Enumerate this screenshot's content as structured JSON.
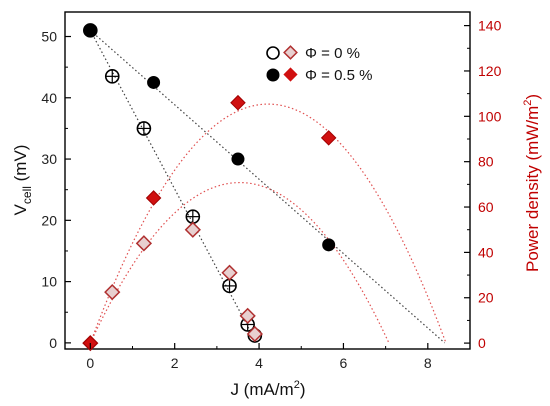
{
  "chart_data": {
    "type": "scatter",
    "xaxis": {
      "label_main": "J (mA/m",
      "label_sup": "2",
      "label_end": ")",
      "range": [
        -0.6,
        9.0
      ],
      "ticks": [
        0,
        2,
        4,
        6,
        8
      ],
      "tick_labels": [
        "0",
        "2",
        "4",
        "6",
        "8"
      ]
    },
    "yaxis_left": {
      "label_main": "V",
      "label_sub": "cell",
      "label_end": " (mV)",
      "range": [
        -1,
        54
      ],
      "ticks": [
        0,
        10,
        20,
        30,
        40,
        50
      ],
      "tick_labels": [
        "0",
        "10",
        "20",
        "30",
        "40",
        "50"
      ]
    },
    "yaxis_right": {
      "label_main": "Power density (mW/m",
      "label_sup": "2",
      "label_end": ")",
      "range": [
        -2.6,
        146
      ],
      "ticks": [
        0,
        20,
        40,
        60,
        80,
        100,
        120,
        140
      ],
      "tick_labels": [
        "0",
        "20",
        "40",
        "60",
        "80",
        "100",
        "120",
        "140"
      ]
    },
    "legend": {
      "position": "top-right",
      "entries": [
        {
          "label": "Φ = 0 %",
          "style": "open"
        },
        {
          "label": "Φ = 0.5 %",
          "style": "filled"
        }
      ]
    },
    "series": [
      {
        "name": "Φ = 0 %",
        "quantity": "voltage",
        "marker": "open-circle-cross",
        "points": [
          [
            0.0,
            51.0
          ],
          [
            0.52,
            43.5
          ],
          [
            1.27,
            35.0
          ],
          [
            2.43,
            20.6
          ],
          [
            3.3,
            9.3
          ],
          [
            3.73,
            3.0
          ],
          [
            3.9,
            1.2
          ]
        ]
      },
      {
        "name": "Φ = 0.5 %",
        "quantity": "voltage",
        "marker": "filled-circle",
        "points": [
          [
            0.0,
            51.0
          ],
          [
            1.5,
            42.5
          ],
          [
            3.5,
            30.0
          ],
          [
            5.65,
            16.0
          ]
        ]
      },
      {
        "name": "Φ = 0 %",
        "quantity": "power",
        "marker": "open-diamond",
        "points": [
          [
            0.0,
            0.0
          ],
          [
            0.52,
            22.5
          ],
          [
            1.27,
            44.0
          ],
          [
            2.43,
            50.0
          ],
          [
            3.3,
            31.0
          ],
          [
            3.73,
            12.0
          ],
          [
            3.9,
            4.0
          ]
        ]
      },
      {
        "name": "Φ = 0.5 %",
        "quantity": "power",
        "marker": "filled-diamond",
        "points": [
          [
            0.0,
            0.0
          ],
          [
            1.5,
            64.0
          ],
          [
            3.5,
            106.0
          ],
          [
            5.65,
            90.5
          ]
        ]
      }
    ],
    "fit_lines": [
      {
        "kind": "linear-voltage",
        "color": "#404040",
        "points": [
          [
            0.0,
            51.0
          ],
          [
            3.9,
            0.5
          ]
        ]
      },
      {
        "kind": "linear-voltage",
        "color": "#404040",
        "points": [
          [
            0.0,
            51.0
          ],
          [
            8.4,
            0.0
          ]
        ]
      },
      {
        "kind": "parabola-power",
        "color": "#e05050",
        "a": -5.65,
        "b": 40.0,
        "xmax": 7.08
      },
      {
        "kind": "parabola-power",
        "color": "#e05050",
        "a": -5.93,
        "b": 50.0,
        "xmax": 8.43
      }
    ],
    "colors": {
      "voltage": "#000000",
      "power": "#c00000",
      "axis_right": "#c00000"
    },
    "grid": false
  }
}
